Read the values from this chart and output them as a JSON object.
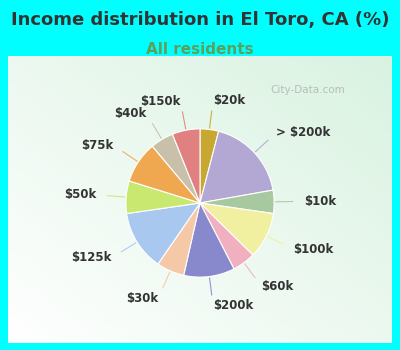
{
  "title": "Income distribution in El Toro, CA (%)",
  "subtitle": "All residents",
  "watermark": "City-Data.com",
  "background_color": "#00FFFF",
  "title_color": "#333333",
  "subtitle_color": "#5ba05b",
  "labels": [
    "$20k",
    "> $200k",
    "$10k",
    "$100k",
    "$60k",
    "$200k",
    "$30k",
    "$125k",
    "$50k",
    "$75k",
    "$40k",
    "$150k"
  ],
  "values": [
    4,
    18,
    5,
    10,
    5,
    11,
    6,
    13,
    7,
    9,
    5,
    6
  ],
  "colors": [
    "#c8a830",
    "#b3a8d4",
    "#a8c8a0",
    "#f0f0a0",
    "#f0b0c0",
    "#8888cc",
    "#f5c8a8",
    "#a8c8f0",
    "#c8e870",
    "#f0a850",
    "#c8c0a8",
    "#e08080"
  ],
  "startangle": 90,
  "title_fontsize": 13,
  "subtitle_fontsize": 11,
  "label_fontsize": 8.5
}
